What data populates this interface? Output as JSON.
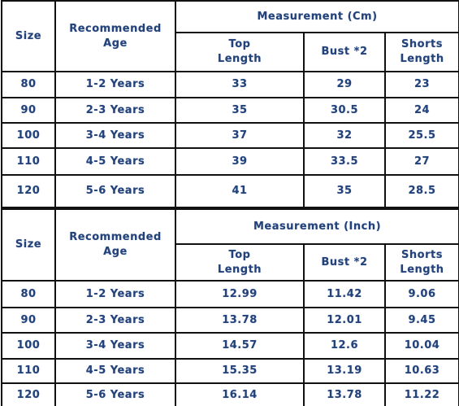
{
  "tables": [
    {
      "header": {
        "size": "Size",
        "age": "Recommended Age",
        "measurement": "Measurement (Cm)",
        "columns": [
          "Top Length",
          "Bust *2",
          "Shorts Length"
        ]
      },
      "rows": [
        [
          "80",
          "1-2 Years",
          "33",
          "29",
          "23"
        ],
        [
          "90",
          "2-3 Years",
          "35",
          "30.5",
          "24"
        ],
        [
          "100",
          "3-4 Years",
          "37",
          "32",
          "25.5"
        ],
        [
          "110",
          "4-5 Years",
          "39",
          "33.5",
          "27"
        ],
        [
          "120",
          "5-6 Years",
          "41",
          "35",
          "28.5"
        ]
      ]
    },
    {
      "header": {
        "size": "Size",
        "age": "Recommended Age",
        "measurement": "Measurement (Inch)",
        "columns": [
          "Top Length",
          "Bust *2",
          "Shorts Length"
        ]
      },
      "rows": [
        [
          "80",
          "1-2 Years",
          "12.99",
          "11.42",
          "9.06"
        ],
        [
          "90",
          "2-3 Years",
          "13.78",
          "12.01",
          "9.45"
        ],
        [
          "100",
          "3-4 Years",
          "14.57",
          "12.6",
          "10.04"
        ],
        [
          "110",
          "4-5 Years",
          "15.35",
          "13.19",
          "10.63"
        ],
        [
          "120",
          "5-6 Years",
          "16.14",
          "13.78",
          "11.22"
        ]
      ]
    }
  ]
}
